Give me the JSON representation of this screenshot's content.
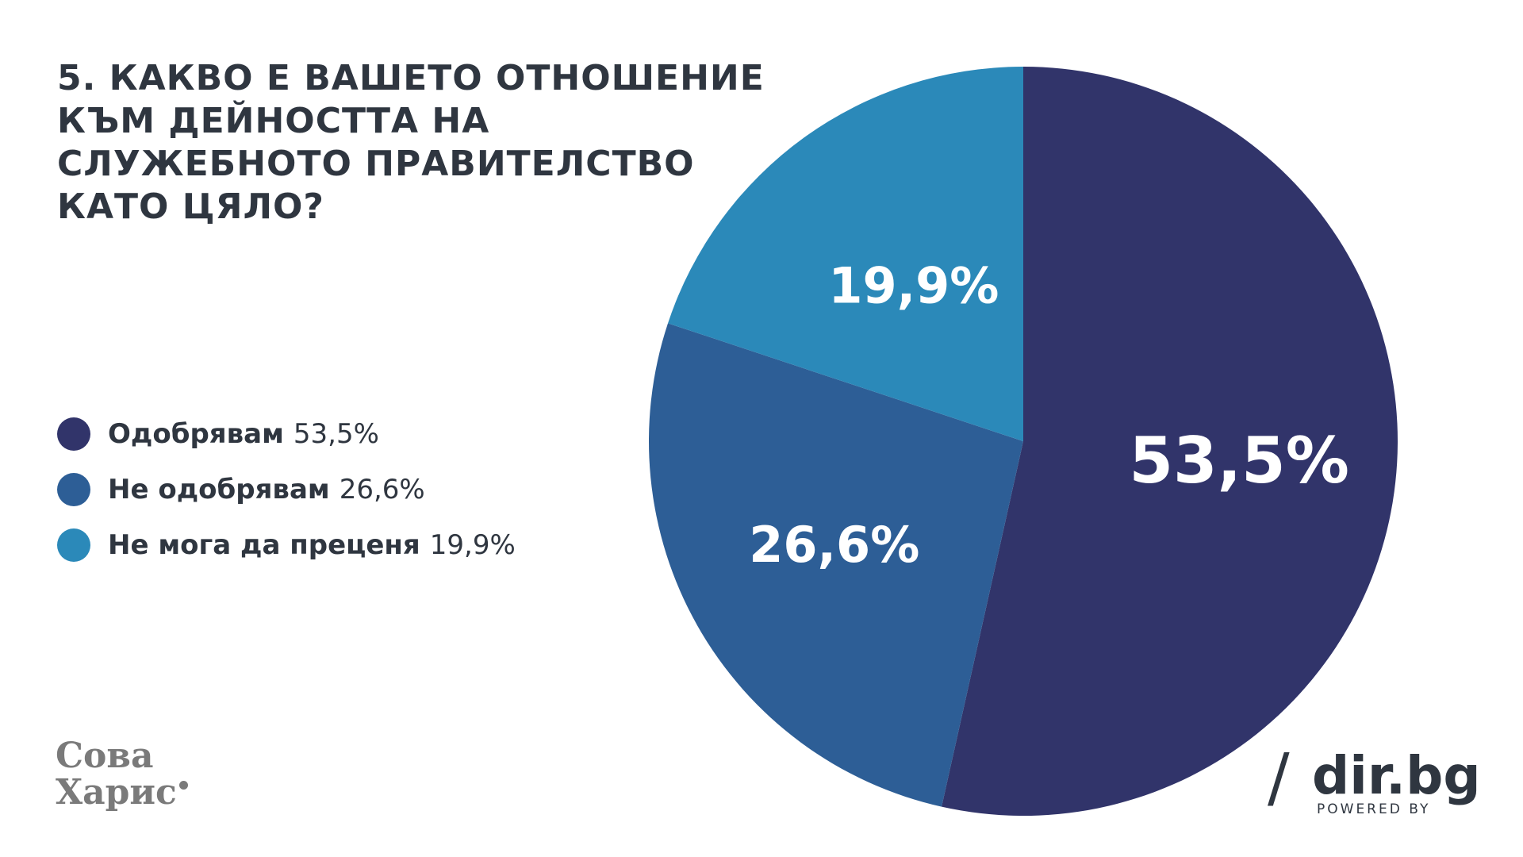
{
  "title_lines": [
    "5. КАКВО Е ВАШЕТО ОТНОШЕНИЕ",
    "КЪМ ДЕЙНОСТТА НА",
    "СЛУЖЕБНОТО ПРАВИТЕЛСТВО",
    "КАТО ЦЯЛО?"
  ],
  "legend": [
    {
      "label": "Одобрявам",
      "value": "53,5%",
      "color": "#31346a"
    },
    {
      "label": "Не одобрявам",
      "value": "26,6%",
      "color": "#2d5e96"
    },
    {
      "label": "Не мога да преценя",
      "value": "19,9%",
      "color": "#2b89b9"
    }
  ],
  "chart_data": {
    "type": "pie",
    "title": "5. КАКВО Е ВАШЕТО ОТНОШЕНИЕ КЪМ ДЕЙНОСТТА НА СЛУЖЕБНОТО ПРАВИТЕЛСТВО КАТО ЦЯЛО?",
    "slices": [
      {
        "label": "Одобрявам",
        "value": 53.5,
        "display": "53,5%",
        "color": "#31346a"
      },
      {
        "label": "Не одобрявам",
        "value": 26.6,
        "display": "26,6%",
        "color": "#2d5e96"
      },
      {
        "label": "Не мога да преценя",
        "value": 19.9,
        "display": "19,9%",
        "color": "#2b89b9"
      }
    ],
    "start": "12 o'clock",
    "direction": "clockwise",
    "legend_position": "left"
  },
  "logos": {
    "sova_line1": "Сова",
    "sova_line2": "Харис",
    "dir_slash": "/",
    "dir_name": "dir.bg",
    "dir_powered": "POWERED BY"
  }
}
